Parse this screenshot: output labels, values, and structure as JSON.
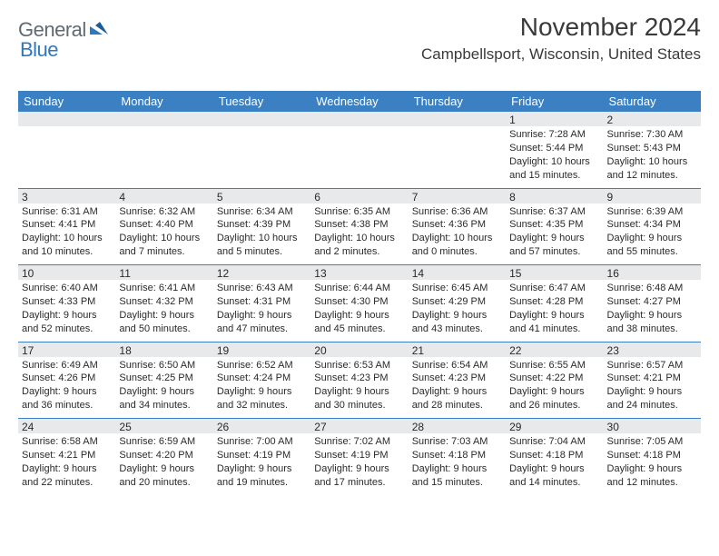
{
  "brand": {
    "part1": "General",
    "part2": "Blue"
  },
  "title": "November 2024",
  "location": "Campbellsport, Wisconsin, United States",
  "colors": {
    "header_bg": "#3a80c3",
    "header_text": "#ffffff",
    "daynum_bg": "#e8e9ea",
    "rule": "#3a80c3",
    "logo_gray": "#5f6a72",
    "logo_blue": "#2f78bd",
    "body_text": "#2a2a2a",
    "page_bg": "#ffffff"
  },
  "typography": {
    "title_fontsize": 28,
    "location_fontsize": 17,
    "dayheader_fontsize": 13,
    "daynum_fontsize": 12,
    "cell_fontsize": 11,
    "font_family": "Arial"
  },
  "day_headers": [
    "Sunday",
    "Monday",
    "Tuesday",
    "Wednesday",
    "Thursday",
    "Friday",
    "Saturday"
  ],
  "weeks": [
    [
      null,
      null,
      null,
      null,
      null,
      {
        "n": "1",
        "sunrise": "7:28 AM",
        "sunset": "5:44 PM",
        "daylight": "10 hours and 15 minutes."
      },
      {
        "n": "2",
        "sunrise": "7:30 AM",
        "sunset": "5:43 PM",
        "daylight": "10 hours and 12 minutes."
      }
    ],
    [
      {
        "n": "3",
        "sunrise": "6:31 AM",
        "sunset": "4:41 PM",
        "daylight": "10 hours and 10 minutes."
      },
      {
        "n": "4",
        "sunrise": "6:32 AM",
        "sunset": "4:40 PM",
        "daylight": "10 hours and 7 minutes."
      },
      {
        "n": "5",
        "sunrise": "6:34 AM",
        "sunset": "4:39 PM",
        "daylight": "10 hours and 5 minutes."
      },
      {
        "n": "6",
        "sunrise": "6:35 AM",
        "sunset": "4:38 PM",
        "daylight": "10 hours and 2 minutes."
      },
      {
        "n": "7",
        "sunrise": "6:36 AM",
        "sunset": "4:36 PM",
        "daylight": "10 hours and 0 minutes."
      },
      {
        "n": "8",
        "sunrise": "6:37 AM",
        "sunset": "4:35 PM",
        "daylight": "9 hours and 57 minutes."
      },
      {
        "n": "9",
        "sunrise": "6:39 AM",
        "sunset": "4:34 PM",
        "daylight": "9 hours and 55 minutes."
      }
    ],
    [
      {
        "n": "10",
        "sunrise": "6:40 AM",
        "sunset": "4:33 PM",
        "daylight": "9 hours and 52 minutes."
      },
      {
        "n": "11",
        "sunrise": "6:41 AM",
        "sunset": "4:32 PM",
        "daylight": "9 hours and 50 minutes."
      },
      {
        "n": "12",
        "sunrise": "6:43 AM",
        "sunset": "4:31 PM",
        "daylight": "9 hours and 47 minutes."
      },
      {
        "n": "13",
        "sunrise": "6:44 AM",
        "sunset": "4:30 PM",
        "daylight": "9 hours and 45 minutes."
      },
      {
        "n": "14",
        "sunrise": "6:45 AM",
        "sunset": "4:29 PM",
        "daylight": "9 hours and 43 minutes."
      },
      {
        "n": "15",
        "sunrise": "6:47 AM",
        "sunset": "4:28 PM",
        "daylight": "9 hours and 41 minutes."
      },
      {
        "n": "16",
        "sunrise": "6:48 AM",
        "sunset": "4:27 PM",
        "daylight": "9 hours and 38 minutes."
      }
    ],
    [
      {
        "n": "17",
        "sunrise": "6:49 AM",
        "sunset": "4:26 PM",
        "daylight": "9 hours and 36 minutes."
      },
      {
        "n": "18",
        "sunrise": "6:50 AM",
        "sunset": "4:25 PM",
        "daylight": "9 hours and 34 minutes."
      },
      {
        "n": "19",
        "sunrise": "6:52 AM",
        "sunset": "4:24 PM",
        "daylight": "9 hours and 32 minutes."
      },
      {
        "n": "20",
        "sunrise": "6:53 AM",
        "sunset": "4:23 PM",
        "daylight": "9 hours and 30 minutes."
      },
      {
        "n": "21",
        "sunrise": "6:54 AM",
        "sunset": "4:23 PM",
        "daylight": "9 hours and 28 minutes."
      },
      {
        "n": "22",
        "sunrise": "6:55 AM",
        "sunset": "4:22 PM",
        "daylight": "9 hours and 26 minutes."
      },
      {
        "n": "23",
        "sunrise": "6:57 AM",
        "sunset": "4:21 PM",
        "daylight": "9 hours and 24 minutes."
      }
    ],
    [
      {
        "n": "24",
        "sunrise": "6:58 AM",
        "sunset": "4:21 PM",
        "daylight": "9 hours and 22 minutes."
      },
      {
        "n": "25",
        "sunrise": "6:59 AM",
        "sunset": "4:20 PM",
        "daylight": "9 hours and 20 minutes."
      },
      {
        "n": "26",
        "sunrise": "7:00 AM",
        "sunset": "4:19 PM",
        "daylight": "9 hours and 19 minutes."
      },
      {
        "n": "27",
        "sunrise": "7:02 AM",
        "sunset": "4:19 PM",
        "daylight": "9 hours and 17 minutes."
      },
      {
        "n": "28",
        "sunrise": "7:03 AM",
        "sunset": "4:18 PM",
        "daylight": "9 hours and 15 minutes."
      },
      {
        "n": "29",
        "sunrise": "7:04 AM",
        "sunset": "4:18 PM",
        "daylight": "9 hours and 14 minutes."
      },
      {
        "n": "30",
        "sunrise": "7:05 AM",
        "sunset": "4:18 PM",
        "daylight": "9 hours and 12 minutes."
      }
    ]
  ],
  "labels": {
    "sunrise": "Sunrise:",
    "sunset": "Sunset:",
    "daylight": "Daylight:"
  }
}
